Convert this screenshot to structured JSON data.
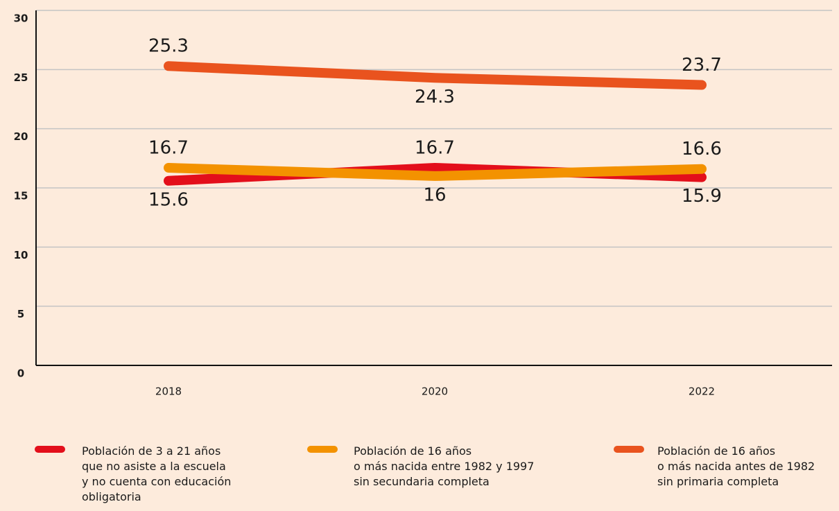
{
  "chart_data": {
    "type": "line",
    "x": [
      "2018",
      "2020",
      "2022"
    ],
    "series": [
      {
        "name": "Población de 3 a 21 años\nque no asiste a la escuela\ny no cuenta con educación\nobligatoria",
        "color": "#e30f1b",
        "values": [
          15.6,
          16.7,
          15.9
        ]
      },
      {
        "name": "Población de 16 años\no más nacida entre 1982 y 1997\nsin secundaria completa",
        "color": "#f39200",
        "values": [
          16.7,
          16,
          16.6
        ]
      },
      {
        "name": "Población de 16 años\no más nacida antes de 1982\nsin primaria completa",
        "color": "#e9531e",
        "values": [
          25.3,
          24.3,
          23.7
        ]
      }
    ],
    "ylim": [
      0,
      30
    ],
    "yticks": [
      0,
      5,
      10,
      15,
      20,
      25,
      30
    ],
    "grid": true
  }
}
